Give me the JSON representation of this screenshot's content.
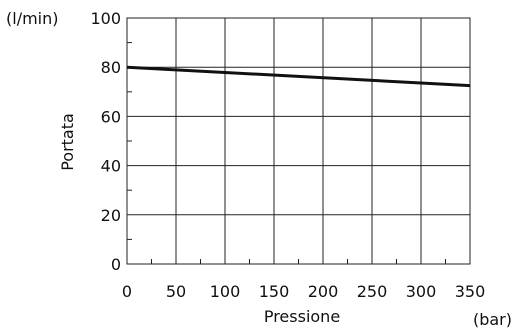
{
  "chart_data": {
    "type": "line",
    "xlabel": "Pressione",
    "ylabel": "Portata",
    "x_unit": "(bar)",
    "y_unit": "(l/min)",
    "xlim": [
      0,
      350
    ],
    "ylim": [
      0,
      100
    ],
    "x_ticks": [
      0,
      50,
      100,
      150,
      200,
      250,
      300,
      350
    ],
    "y_ticks": [
      0,
      20,
      40,
      60,
      80,
      100
    ],
    "grid": true,
    "series": [
      {
        "x": [
          0,
          350
        ],
        "y": [
          80,
          72.5
        ]
      }
    ]
  }
}
